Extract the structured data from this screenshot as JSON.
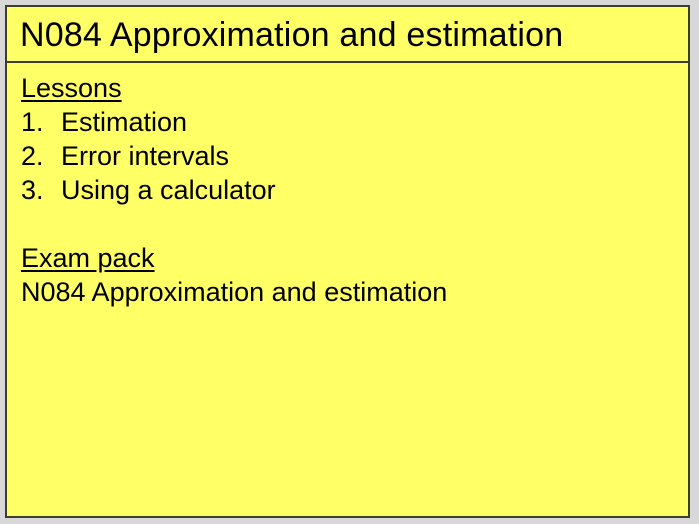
{
  "colors": {
    "page_background": "#d8d8d8",
    "card_background": "#ffff66",
    "border": "#3d3d2e",
    "text": "#000000"
  },
  "card": {
    "title": "N084 Approximation and estimation"
  },
  "lessons": {
    "heading": "Lessons",
    "items": [
      {
        "number": "1.",
        "label": "Estimation"
      },
      {
        "number": "2.",
        "label": "Error intervals"
      },
      {
        "number": "3.",
        "label": "Using a calculator"
      }
    ]
  },
  "exam_pack": {
    "heading": "Exam pack",
    "item": "N084 Approximation and estimation"
  }
}
